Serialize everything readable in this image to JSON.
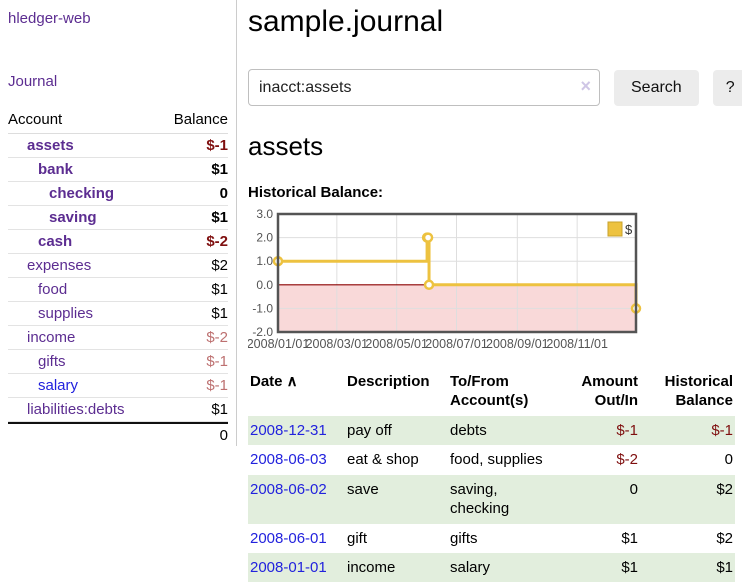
{
  "app": {
    "brand": "hledger-web",
    "nav_journal": "Journal"
  },
  "sidebar": {
    "header": {
      "account": "Account",
      "balance": "Balance"
    },
    "accounts": [
      {
        "name": "assets",
        "balance": "$-1",
        "level": 1,
        "bold": true,
        "balance_style": "neg-strong",
        "link_style": ""
      },
      {
        "name": "bank",
        "balance": "$1",
        "level": 2,
        "bold": true,
        "balance_style": "",
        "link_style": ""
      },
      {
        "name": "checking",
        "balance": "0",
        "level": 3,
        "bold": true,
        "balance_style": "",
        "link_style": ""
      },
      {
        "name": "saving",
        "balance": "$1",
        "level": 3,
        "bold": true,
        "balance_style": "",
        "link_style": ""
      },
      {
        "name": "cash",
        "balance": "$-2",
        "level": 2,
        "bold": true,
        "balance_style": "neg-strong",
        "link_style": ""
      },
      {
        "name": "expenses",
        "balance": "$2",
        "level": 1,
        "bold": false,
        "balance_style": "",
        "link_style": ""
      },
      {
        "name": "food",
        "balance": "$1",
        "level": 2,
        "bold": false,
        "balance_style": "",
        "link_style": ""
      },
      {
        "name": "supplies",
        "balance": "$1",
        "level": 2,
        "bold": false,
        "balance_style": "",
        "link_style": ""
      },
      {
        "name": "income",
        "balance": "$-2",
        "level": 1,
        "bold": false,
        "balance_style": "neg-soft",
        "link_style": ""
      },
      {
        "name": "gifts",
        "balance": "$-1",
        "level": 2,
        "bold": false,
        "balance_style": "neg-soft",
        "link_style": ""
      },
      {
        "name": "salary",
        "balance": "$-1",
        "level": 2,
        "bold": false,
        "balance_style": "neg-soft",
        "link_style": "blue"
      },
      {
        "name": "liabilities:debts",
        "balance": "$1",
        "level": 1,
        "bold": false,
        "balance_style": "",
        "link_style": ""
      }
    ],
    "total": "0"
  },
  "header": {
    "title": "sample.journal"
  },
  "search": {
    "value": "inacct:assets",
    "clear_icon": "×",
    "button": "Search",
    "help_button": "?"
  },
  "account_page": {
    "heading": "assets",
    "chart_label": "Historical Balance:"
  },
  "chart_data": {
    "type": "line",
    "step": true,
    "title": "Historical Balance:",
    "series": [
      {
        "name": "$",
        "x": [
          "2008-01-01",
          "2008-06-01",
          "2008-06-02",
          "2008-06-03",
          "2008-12-31"
        ],
        "values": [
          1,
          2,
          2,
          0,
          -1
        ]
      }
    ],
    "x_range": [
      "2008-01-01",
      "2008-12-31"
    ],
    "ylim": [
      -2,
      3
    ],
    "y_ticks": [
      "3.0",
      "2.0",
      "1.0",
      "0.0",
      "-1.0",
      "-2.0"
    ],
    "x_ticks": [
      {
        "label": "2008/01/01",
        "date": "2008-01-01"
      },
      {
        "label": "2008/03/01",
        "date": "2008-03-01"
      },
      {
        "label": "2008/05/01",
        "date": "2008-05-01"
      },
      {
        "label": "2008/07/01",
        "date": "2008-07-01"
      },
      {
        "label": "2008/09/01",
        "date": "2008-09-01"
      },
      {
        "label": "2008/11/01",
        "date": "2008-11-01"
      }
    ],
    "grid": true,
    "legend": {
      "label": "$",
      "position": "top-right"
    },
    "colors": {
      "line": "#edc240",
      "marker_fill": "#ffffff",
      "negative_region": "#f9d9d9",
      "zero_line": "#8b0000",
      "grid": "#dedede",
      "border": "#545454",
      "tick_text": "#545454"
    }
  },
  "register": {
    "columns": [
      {
        "label": "Date",
        "align": "left",
        "sort_icon": "∧"
      },
      {
        "label": "Description",
        "align": "left"
      },
      {
        "label": "To/From Account(s)",
        "align": "left"
      },
      {
        "label": "Amount Out/In",
        "align": "right"
      },
      {
        "label": "Historical Balance",
        "align": "right"
      }
    ],
    "rows": [
      {
        "date": "2008-12-31",
        "description": "pay off",
        "accounts": "debts",
        "amount": "$-1",
        "balance": "$-1",
        "amount_neg": true,
        "balance_neg": true
      },
      {
        "date": "2008-06-03",
        "description": "eat & shop",
        "accounts": "food, supplies",
        "amount": "$-2",
        "balance": "0",
        "amount_neg": true,
        "balance_neg": false
      },
      {
        "date": "2008-06-02",
        "description": "save",
        "accounts": "saving, checking",
        "amount": "0",
        "balance": "$2",
        "amount_neg": false,
        "balance_neg": false
      },
      {
        "date": "2008-06-01",
        "description": "gift",
        "accounts": "gifts",
        "amount": "$1",
        "balance": "$2",
        "amount_neg": false,
        "balance_neg": false
      },
      {
        "date": "2008-01-01",
        "description": "income",
        "accounts": "salary",
        "amount": "$1",
        "balance": "$1",
        "amount_neg": false,
        "balance_neg": false
      }
    ]
  },
  "colors": {
    "accent_purple": "#5c2d91",
    "link_blue": "#2222dd",
    "neg_strong": "#7f0f0f",
    "neg_soft": "#bd7070",
    "row_green": "#e2eedd"
  }
}
